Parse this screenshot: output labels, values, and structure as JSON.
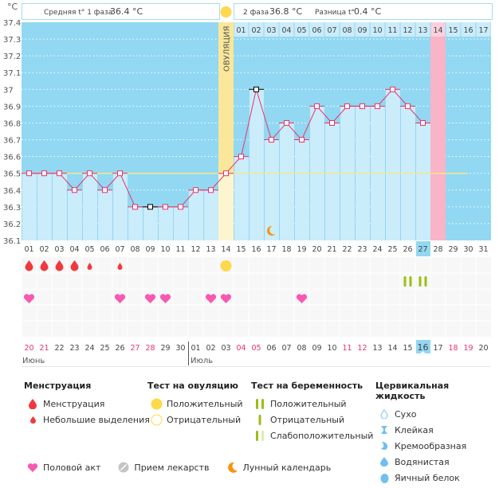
{
  "chart_data": {
    "type": "line",
    "title": "",
    "ylabel": "°C",
    "ylim": [
      36.1,
      37.4
    ],
    "yticks": [
      "37.4",
      "37.3",
      "37.2",
      "37.1",
      "37",
      "36.9",
      "36.8",
      "36.7",
      "36.6",
      "36.5",
      "36.4",
      "36.3",
      "36.2",
      "36.1"
    ],
    "cycle_days": [
      "01",
      "02",
      "03",
      "04",
      "05",
      "06",
      "07",
      "08",
      "09",
      "10",
      "11",
      "12",
      "13",
      "14",
      "15",
      "16",
      "17",
      "18",
      "19",
      "20",
      "21",
      "22",
      "23",
      "24",
      "25",
      "26",
      "27",
      "28",
      "29",
      "30",
      "31"
    ],
    "phase2_days": [
      "01",
      "02",
      "03",
      "04",
      "05",
      "06",
      "07",
      "08",
      "09",
      "10",
      "11",
      "12",
      "13",
      "14",
      "15",
      "16",
      "17"
    ],
    "temperatures": [
      36.5,
      36.5,
      36.5,
      36.4,
      36.5,
      36.4,
      36.5,
      36.3,
      36.3,
      36.3,
      36.3,
      36.4,
      36.4,
      36.5,
      36.6,
      37.0,
      36.7,
      36.8,
      36.7,
      36.9,
      36.8,
      36.9,
      36.9,
      36.9,
      37.0,
      36.9,
      36.8,
      null,
      null,
      null,
      null
    ],
    "excluded_points": [
      9,
      16
    ],
    "coverline": 36.5,
    "ovulation_day": 14,
    "ovulation_label": "ОВУЛЯЦИЯ",
    "expected_period_day": 28,
    "today_cycle_day": "27",
    "moon_day": 17,
    "calendar_dates": [
      "20",
      "21",
      "22",
      "23",
      "24",
      "25",
      "26",
      "27",
      "28",
      "29",
      "30",
      "01",
      "02",
      "03",
      "04",
      "05",
      "06",
      "07",
      "08",
      "09",
      "10",
      "11",
      "12",
      "13",
      "14",
      "15",
      "16",
      "17",
      "18",
      "19",
      "20"
    ],
    "weekend_dates_idx": [
      0,
      1,
      7,
      8,
      14,
      15,
      21,
      22,
      28,
      29
    ],
    "today_date": "16",
    "months": [
      {
        "name": "Июнь",
        "start": 0
      },
      {
        "name": "Июль",
        "start": 11
      }
    ],
    "menstruation": [
      {
        "day": 1,
        "type": "heavy"
      },
      {
        "day": 2,
        "type": "heavy"
      },
      {
        "day": 3,
        "type": "heavy"
      },
      {
        "day": 4,
        "type": "heavy"
      },
      {
        "day": 5,
        "type": "light"
      },
      {
        "day": 7,
        "type": "light"
      }
    ],
    "ovulation_test_positive_days": [
      14
    ],
    "intercourse_days": [
      1,
      7,
      9,
      10,
      13,
      14,
      19
    ],
    "pregnancy_test_positive_days": [
      26,
      27
    ]
  },
  "header": {
    "unit": "°C",
    "phase1_label": "Средняя t° 1 фаза",
    "phase1_value": "36.4 °C",
    "phase2_label": "2 фаза",
    "phase2_value": "36.8 °C",
    "diff_label": "Разница t°",
    "diff_value": "0.4 °C"
  },
  "colors": {
    "sky": "#92d8f2",
    "bar": "#cbecfa",
    "ovulation": "#fbe79a",
    "period": "#f9b4c7",
    "line": "#e8336a",
    "coverline": "#f3e98b",
    "blood": "#f0393e",
    "heart": "#f859b0",
    "sun": "#fdd94b",
    "moon": "#f5950f",
    "green": "#9cbd16",
    "weekend": "#e8336a"
  },
  "legend": {
    "menstruation": {
      "title": "Менструация",
      "items": [
        "Менструация",
        "Небольшие выделения"
      ]
    },
    "ovulation_test": {
      "title": "Тест на овуляцию",
      "items": [
        "Положительный",
        "Отрицательный"
      ]
    },
    "pregnancy_test": {
      "title": "Тест на беременность",
      "items": [
        "Положительный",
        "Отрицательный",
        "Слабоположительный"
      ]
    },
    "cervical": {
      "title": "Цервикальная жидкость",
      "items": [
        "Сухо",
        "Клейкая",
        "Кремообразная",
        "Водянистая",
        "Яичный белок"
      ]
    },
    "bottom": [
      "Половой акт",
      "Прием лекарств",
      "Лунный календарь"
    ]
  }
}
